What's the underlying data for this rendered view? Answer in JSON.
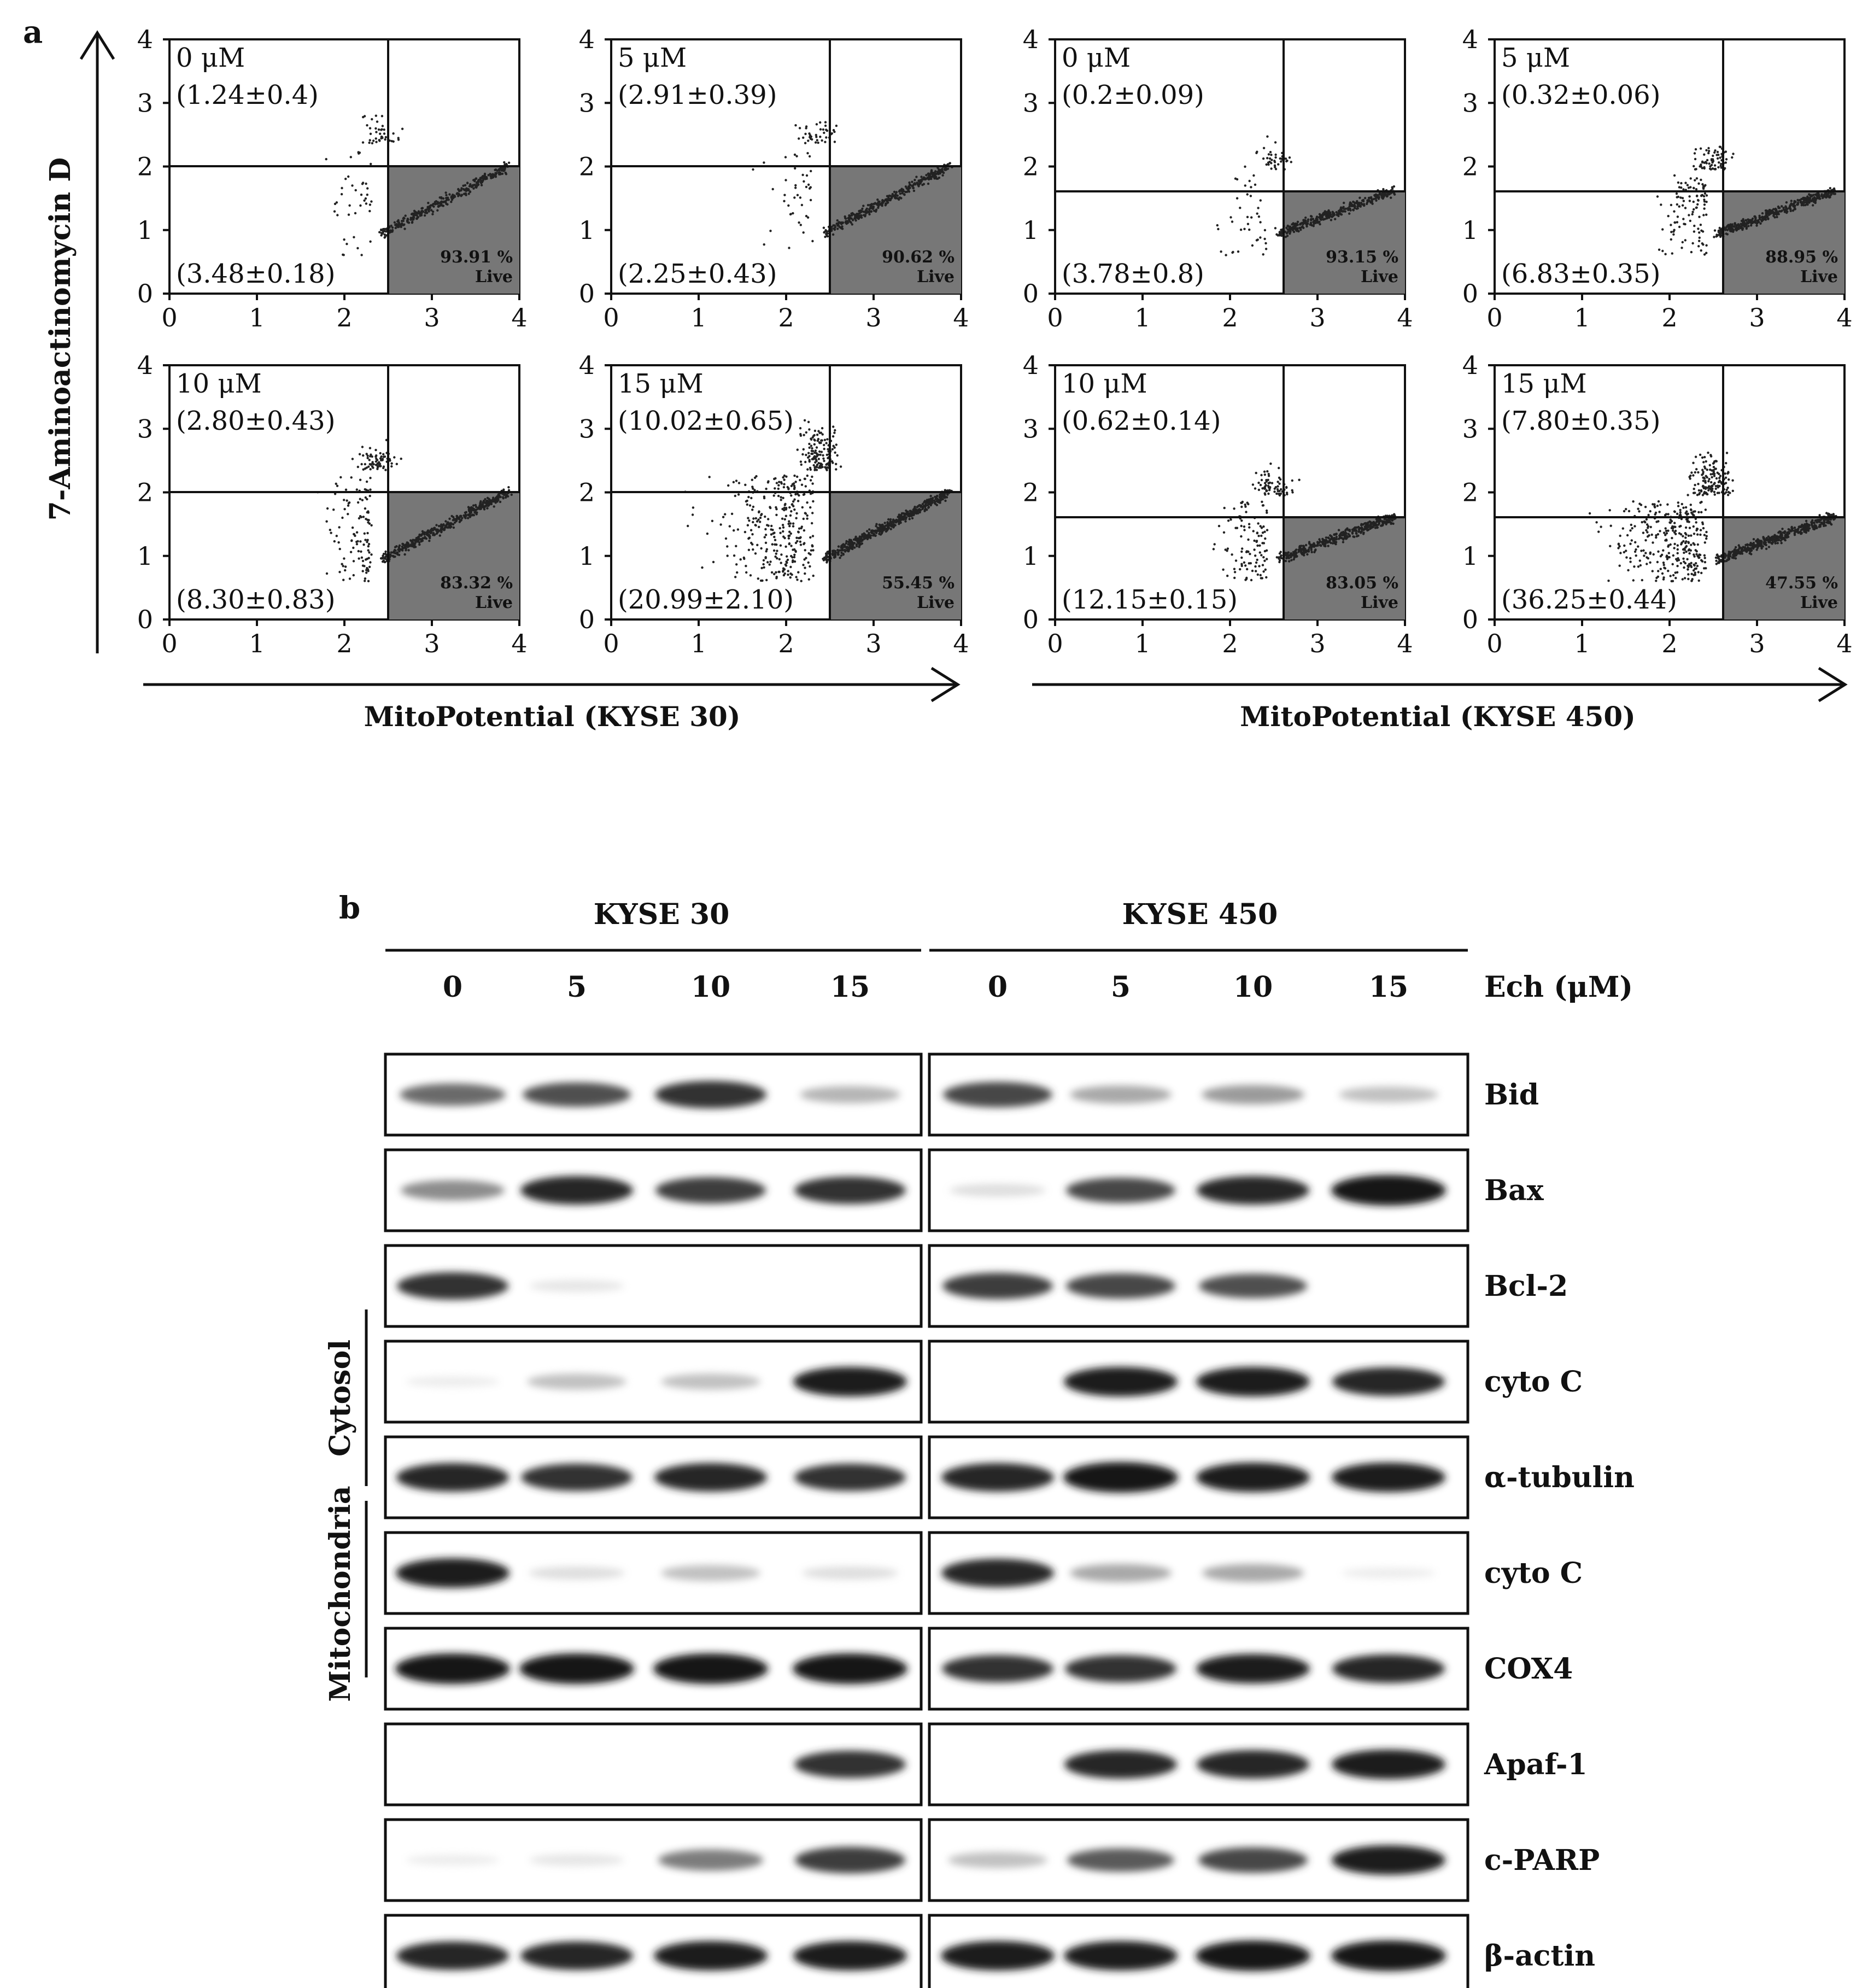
{
  "panel_a": {
    "label": "a",
    "y_axis_label": "7-Aminoactinomycin D",
    "tick_labels": [
      "0",
      "1",
      "2",
      "3",
      "4"
    ],
    "plot_live_suffix": "Live",
    "groups": [
      {
        "x_axis_label": "MitoPotential (KYSE 30)",
        "plots": [
          {
            "dose": "0 μM",
            "top_left": "(1.24±0.4)",
            "bottom_left": "(3.48±0.18)",
            "live_percent": "93.91 %",
            "scatter": "low"
          },
          {
            "dose": "5 μM",
            "top_left": "(2.91±0.39)",
            "bottom_left": "(2.25±0.43)",
            "live_percent": "90.62 %",
            "scatter": "low"
          },
          {
            "dose": "10 μM",
            "top_left": "(2.80±0.43)",
            "bottom_left": "(8.30±0.83)",
            "live_percent": "83.32 %",
            "scatter": "mid"
          },
          {
            "dose": "15 μM",
            "top_left": "(10.02±0.65)",
            "bottom_left": "(20.99±2.10)",
            "live_percent": "55.45 %",
            "scatter": "high"
          }
        ]
      },
      {
        "x_axis_label": "MitoPotential (KYSE 450)",
        "plots": [
          {
            "dose": "0 μM",
            "top_left": "(0.2±0.09)",
            "bottom_left": "(3.78±0.8)",
            "live_percent": "93.15 %",
            "scatter": "low"
          },
          {
            "dose": "5 μM",
            "top_left": "(0.32±0.06)",
            "bottom_left": "(6.83±0.35)",
            "live_percent": "88.95 %",
            "scatter": "mid"
          },
          {
            "dose": "10 μM",
            "top_left": "(0.62±0.14)",
            "bottom_left": "(12.15±0.15)",
            "live_percent": "83.05 %",
            "scatter": "mid"
          },
          {
            "dose": "15 μM",
            "top_left": "(7.80±0.35)",
            "bottom_left": "(36.25±0.44)",
            "live_percent": "47.55 %",
            "scatter": "high"
          }
        ]
      }
    ]
  },
  "panel_b": {
    "label": "b",
    "cell_lines": [
      "KYSE 30",
      "KYSE 450"
    ],
    "lane_labels": [
      "0",
      "5",
      "10",
      "15"
    ],
    "dose_unit_label": "Ech (μM)",
    "fraction_labels": {
      "cytosol": "Cytosol",
      "mitochondria": "Mitochondria"
    },
    "blots": [
      {
        "protein": "Bid",
        "intensity": [
          [
            0.6,
            0.7,
            0.85,
            0.35
          ],
          [
            0.75,
            0.4,
            0.45,
            0.3
          ]
        ]
      },
      {
        "protein": "Bax",
        "intensity": [
          [
            0.5,
            0.9,
            0.8,
            0.85
          ],
          [
            0.15,
            0.75,
            0.9,
            1.0
          ]
        ]
      },
      {
        "protein": "Bcl-2",
        "intensity": [
          [
            0.85,
            0.1,
            0,
            0
          ],
          [
            0.8,
            0.75,
            0.7,
            0
          ]
        ]
      },
      {
        "protein": "cyto C",
        "intensity": [
          [
            0.05,
            0.3,
            0.3,
            0.95
          ],
          [
            0,
            0.95,
            0.95,
            0.9
          ]
        ]
      },
      {
        "protein": "α-tubulin",
        "intensity": [
          [
            0.9,
            0.85,
            0.9,
            0.85
          ],
          [
            0.9,
            1.0,
            0.95,
            0.95
          ]
        ]
      },
      {
        "protein": "cyto C",
        "intensity": [
          [
            0.95,
            0.15,
            0.3,
            0.15
          ],
          [
            0.9,
            0.4,
            0.4,
            0.05
          ]
        ]
      },
      {
        "protein": "COX4",
        "intensity": [
          [
            1.0,
            1.0,
            1.0,
            1.0
          ],
          [
            0.85,
            0.85,
            0.95,
            0.9
          ]
        ]
      },
      {
        "protein": "Apaf-1",
        "intensity": [
          [
            0,
            0,
            0,
            0.85
          ],
          [
            0,
            0.9,
            0.9,
            0.95
          ]
        ]
      },
      {
        "protein": "c-PARP",
        "intensity": [
          [
            0.05,
            0.1,
            0.55,
            0.8
          ],
          [
            0.3,
            0.65,
            0.75,
            0.95
          ]
        ]
      },
      {
        "protein": "β-actin",
        "intensity": [
          [
            0.9,
            0.9,
            0.95,
            0.95
          ],
          [
            0.95,
            0.95,
            1.0,
            1.0
          ]
        ]
      }
    ]
  }
}
